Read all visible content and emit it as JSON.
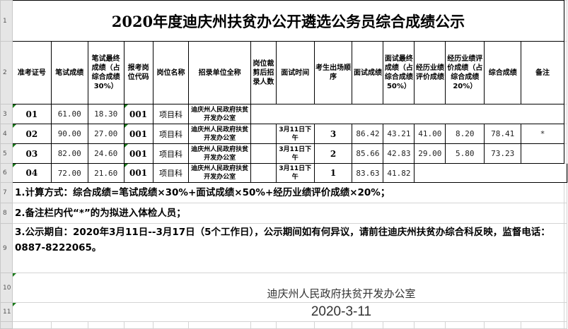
{
  "title": "2020年度迪庆州扶贫办公开遴选公务员综合成绩公示",
  "row_numbers": [
    "1",
    "2",
    "3",
    "4",
    "5",
    "6",
    "7",
    "8",
    "9",
    "10",
    "11"
  ],
  "headers": [
    "准考证号",
    "笔试成绩",
    "笔试最终成绩（占综合成绩30%）",
    "报考岗位代码",
    "岗位名称",
    "招录单位全称",
    "岗位裁剪后招录人数",
    "面试时间",
    "考生出场顺序",
    "面试成绩",
    "面试最终成绩（占综合成绩50%）",
    "经历业绩评价成绩",
    "经历业绩评价成绩（占综合成绩20%）",
    "综合成绩",
    "备注"
  ],
  "rows": [
    {
      "id": "01",
      "written": "61.00",
      "written_final": "18.30",
      "code": "001",
      "post": "项目科",
      "unit": "迪庆州人民政府扶贫开发办公室"
    },
    {
      "id": "02",
      "written": "90.00",
      "written_final": "27.00",
      "code": "001",
      "post": "项目科",
      "unit": "迪庆州人民政府扶贫开发办公室",
      "time": "3月11日下午",
      "order": "3",
      "interview": "86.42",
      "interview_final": "43.21",
      "exp": "41.00",
      "exp_final": "8.20",
      "total": "78.41",
      "remark": "*"
    },
    {
      "id": "03",
      "written": "82.00",
      "written_final": "24.60",
      "code": "001",
      "post": "项目科",
      "unit": "迪庆州人民政府扶贫开发办公室",
      "time": "3月11日下午",
      "order": "2",
      "interview": "85.66",
      "interview_final": "42.83",
      "exp": "29.00",
      "exp_final": "5.80",
      "total": "73.23"
    },
    {
      "id": "04",
      "written": "72.00",
      "written_final": "21.60",
      "code": "001",
      "post": "项目科",
      "unit": "迪庆州人民政府扶贫开发办公室",
      "time": "3月11日下午",
      "order": "1",
      "interview": "83.63",
      "interview_final": "41.82"
    }
  ],
  "notes": [
    "1.计算方式：综合成绩=笔试成绩×30%+面试成绩×50%+经历业绩评价成绩×20%；",
    "2.备注栏内代“*”的为拟进入体检人员；",
    "3.公示期自：2020年3月11日--3月17日（5个工作日），公示期间如有何异议，请前往迪庆州扶贫办综合科反映，监督电话：0887-8222065。"
  ],
  "signature": "迪庆州人民政府扶贫开发办公室",
  "date": "2020-3-11"
}
